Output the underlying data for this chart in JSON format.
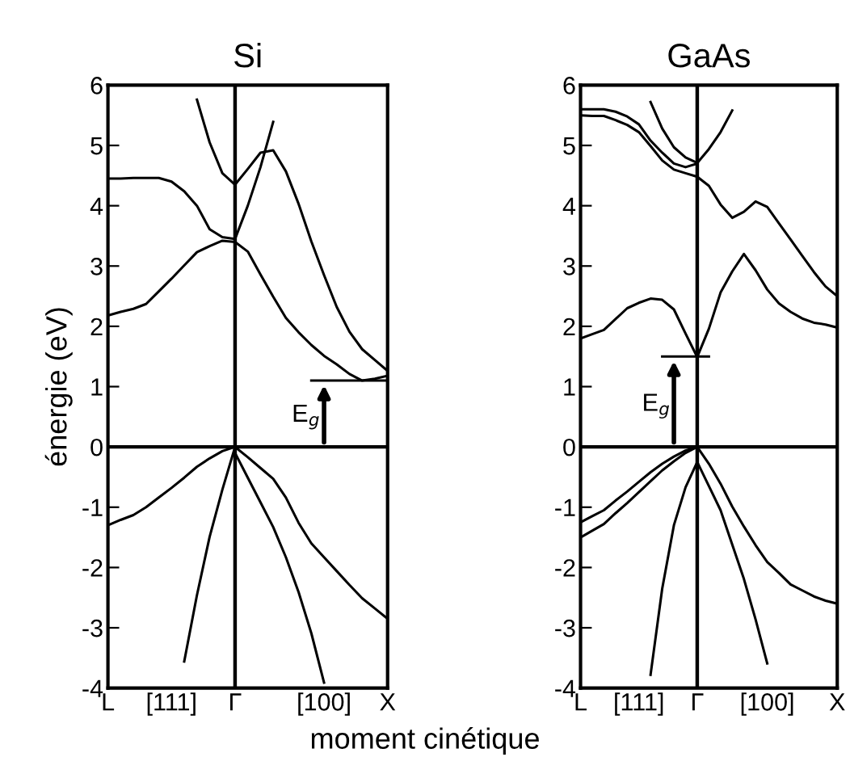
{
  "chart_data": [
    {
      "type": "line",
      "title": "Si",
      "xlabel": "moment cinétique",
      "ylabel": "énergie (eV)",
      "categories": [
        "L",
        null,
        null,
        null,
        null,
        "[111]",
        null,
        null,
        null,
        null,
        "Γ",
        null,
        null,
        null,
        null,
        null,
        null,
        "[100]",
        null,
        null,
        null,
        null,
        "X"
      ],
      "ylim": [
        -4,
        6
      ],
      "yticks": [
        -4,
        -3,
        -2,
        -1,
        0,
        1,
        2,
        3,
        4,
        5,
        6
      ],
      "grid": false,
      "legend": false,
      "marker": "none",
      "line_style": "solid",
      "ref_lines": [
        {
          "axis": "y",
          "value": 0,
          "color": "#000000"
        },
        {
          "axis": "x",
          "value": "Γ",
          "color": "#000000"
        }
      ],
      "annotations": [
        {
          "text": "E$_{g}$",
          "y": 1.1
        }
      ],
      "series": [
        {
          "color": "#000000",
          "values": [
            -1.3,
            -1.21,
            -1.13,
            -1.0,
            -0.84,
            -0.68,
            -0.51,
            -0.33,
            -0.19,
            -0.07,
            0,
            null,
            null,
            null,
            null,
            null,
            null,
            null,
            null,
            null,
            null,
            null,
            null
          ]
        },
        {
          "color": "#000000",
          "values": [
            null,
            null,
            null,
            null,
            null,
            null,
            null,
            null,
            null,
            null,
            0,
            -0.17,
            -0.35,
            -0.53,
            -0.84,
            -1.26,
            -1.6,
            -1.83,
            -2.06,
            -2.29,
            -2.51,
            -2.68,
            -2.85
          ]
        },
        {
          "color": "#000000",
          "values": [
            null,
            null,
            null,
            null,
            null,
            null,
            null,
            null,
            null,
            null,
            -0.1,
            -0.51,
            -0.92,
            -1.33,
            -1.83,
            -2.41,
            -3.09,
            -3.91,
            null,
            null,
            null,
            null,
            null
          ]
        },
        {
          "color": "#000000",
          "values": [
            null,
            null,
            null,
            null,
            null,
            null,
            -3.56,
            -2.46,
            -1.49,
            -0.71,
            0,
            null,
            null,
            null,
            null,
            null,
            null,
            null,
            null,
            null,
            null,
            null,
            null
          ]
        },
        {
          "color": "#000000",
          "values": [
            2.18,
            2.24,
            2.29,
            2.37,
            2.58,
            2.79,
            3.01,
            3.23,
            3.33,
            3.42,
            3.4,
            3.24,
            2.86,
            2.49,
            2.14,
            1.9,
            1.69,
            1.51,
            1.37,
            1.21,
            1.1,
            1.13,
            1.18
          ]
        },
        {
          "color": "#000000",
          "values": [
            4.45,
            4.45,
            4.46,
            4.46,
            4.46,
            4.4,
            4.24,
            4.0,
            3.61,
            3.48,
            3.45,
            null,
            null,
            null,
            null,
            null,
            null,
            null,
            null,
            null,
            null,
            null,
            null
          ]
        },
        {
          "color": "#000000",
          "values": [
            null,
            null,
            null,
            null,
            null,
            null,
            null,
            5.76,
            5.05,
            4.54,
            4.35,
            4.61,
            4.88,
            4.92,
            4.57,
            4.03,
            3.41,
            2.85,
            2.32,
            1.91,
            1.62,
            1.44,
            1.26
          ]
        },
        {
          "color": "#000000",
          "values": [
            null,
            null,
            null,
            null,
            null,
            null,
            null,
            null,
            null,
            null,
            3.45,
            4.0,
            4.64,
            5.39,
            null,
            null,
            null,
            null,
            null,
            null,
            null,
            null,
            null
          ]
        },
        {
          "color": "#000000",
          "values": [
            null,
            null,
            null,
            null,
            null,
            null,
            null,
            null,
            null,
            null,
            null,
            null,
            null,
            null,
            null,
            null,
            1.1,
            1.1,
            1.1,
            1.1,
            1.1,
            1.1,
            1.1
          ]
        }
      ]
    },
    {
      "type": "line",
      "title": "GaAs",
      "categories": [
        "L",
        null,
        null,
        null,
        null,
        "[111]",
        null,
        null,
        null,
        null,
        "Γ",
        null,
        null,
        null,
        null,
        null,
        "[100]",
        null,
        null,
        null,
        null,
        null,
        "X"
      ],
      "ylim": [
        -4,
        6
      ],
      "yticks": [
        -4,
        -3,
        -2,
        -1,
        0,
        1,
        2,
        3,
        4,
        5,
        6
      ],
      "grid": false,
      "legend": false,
      "marker": "none",
      "line_style": "solid",
      "ref_lines": [
        {
          "axis": "y",
          "value": 0,
          "color": "#000000"
        },
        {
          "axis": "x",
          "value": "Γ",
          "color": "#000000"
        }
      ],
      "annotations": [
        {
          "text": "E$_{g}$",
          "y": 1.5
        }
      ],
      "series": [
        {
          "color": "#000000",
          "values": [
            -1.25,
            -1.15,
            -1.05,
            -0.89,
            -0.74,
            -0.58,
            -0.42,
            -0.28,
            -0.16,
            -0.06,
            0,
            null,
            null,
            null,
            null,
            null,
            null,
            null,
            null,
            null,
            null,
            null,
            null
          ]
        },
        {
          "color": "#000000",
          "values": [
            -1.5,
            -1.39,
            -1.28,
            -1.1,
            -0.93,
            -0.75,
            -0.57,
            -0.39,
            -0.24,
            -0.1,
            0,
            null,
            null,
            null,
            null,
            null,
            null,
            null,
            null,
            null,
            null,
            null,
            null
          ]
        },
        {
          "color": "#000000",
          "values": [
            null,
            null,
            null,
            null,
            null,
            null,
            null,
            null,
            null,
            null,
            0,
            -0.28,
            -0.61,
            -0.99,
            -1.32,
            -1.63,
            -1.91,
            -2.09,
            -2.28,
            -2.38,
            -2.48,
            -2.55,
            -2.6
          ]
        },
        {
          "color": "#000000",
          "values": [
            null,
            null,
            null,
            null,
            null,
            null,
            -3.78,
            -2.35,
            -1.3,
            -0.67,
            -0.25,
            -0.65,
            -1.05,
            -1.62,
            -2.19,
            -2.86,
            -3.59,
            null,
            null,
            null,
            null,
            null,
            null
          ]
        },
        {
          "color": "#000000",
          "values": [
            1.8,
            1.87,
            1.94,
            2.12,
            2.3,
            2.39,
            2.46,
            2.44,
            2.28,
            1.88,
            1.49,
            1.96,
            2.56,
            2.91,
            3.2,
            2.93,
            2.61,
            2.38,
            2.24,
            2.13,
            2.06,
            2.03,
            1.98
          ]
        },
        {
          "color": "#000000",
          "values": [
            5.6,
            5.6,
            5.6,
            5.56,
            5.48,
            5.35,
            5.08,
            4.88,
            4.7,
            4.64,
            4.7,
            null,
            null,
            null,
            null,
            null,
            null,
            null,
            null,
            null,
            null,
            null,
            null
          ]
        },
        {
          "color": "#000000",
          "values": [
            5.5,
            5.49,
            5.49,
            5.42,
            5.34,
            5.22,
            4.99,
            4.75,
            4.6,
            4.54,
            4.48,
            4.33,
            4.02,
            3.8,
            3.9,
            4.07,
            3.98,
            3.71,
            3.44,
            3.17,
            2.9,
            2.66,
            2.5
          ]
        },
        {
          "color": "#000000",
          "values": [
            null,
            null,
            null,
            null,
            null,
            null,
            5.72,
            5.28,
            4.97,
            4.8,
            4.71,
            4.94,
            5.22,
            5.58,
            null,
            null,
            null,
            null,
            null,
            null,
            null,
            null,
            null
          ]
        },
        {
          "color": "#000000",
          "values": [
            null,
            null,
            null,
            null,
            null,
            null,
            null,
            1.5,
            1.5,
            1.5,
            1.5,
            1.5,
            null,
            null,
            null,
            null,
            null,
            null,
            null,
            null,
            null,
            null,
            null
          ]
        }
      ]
    }
  ]
}
